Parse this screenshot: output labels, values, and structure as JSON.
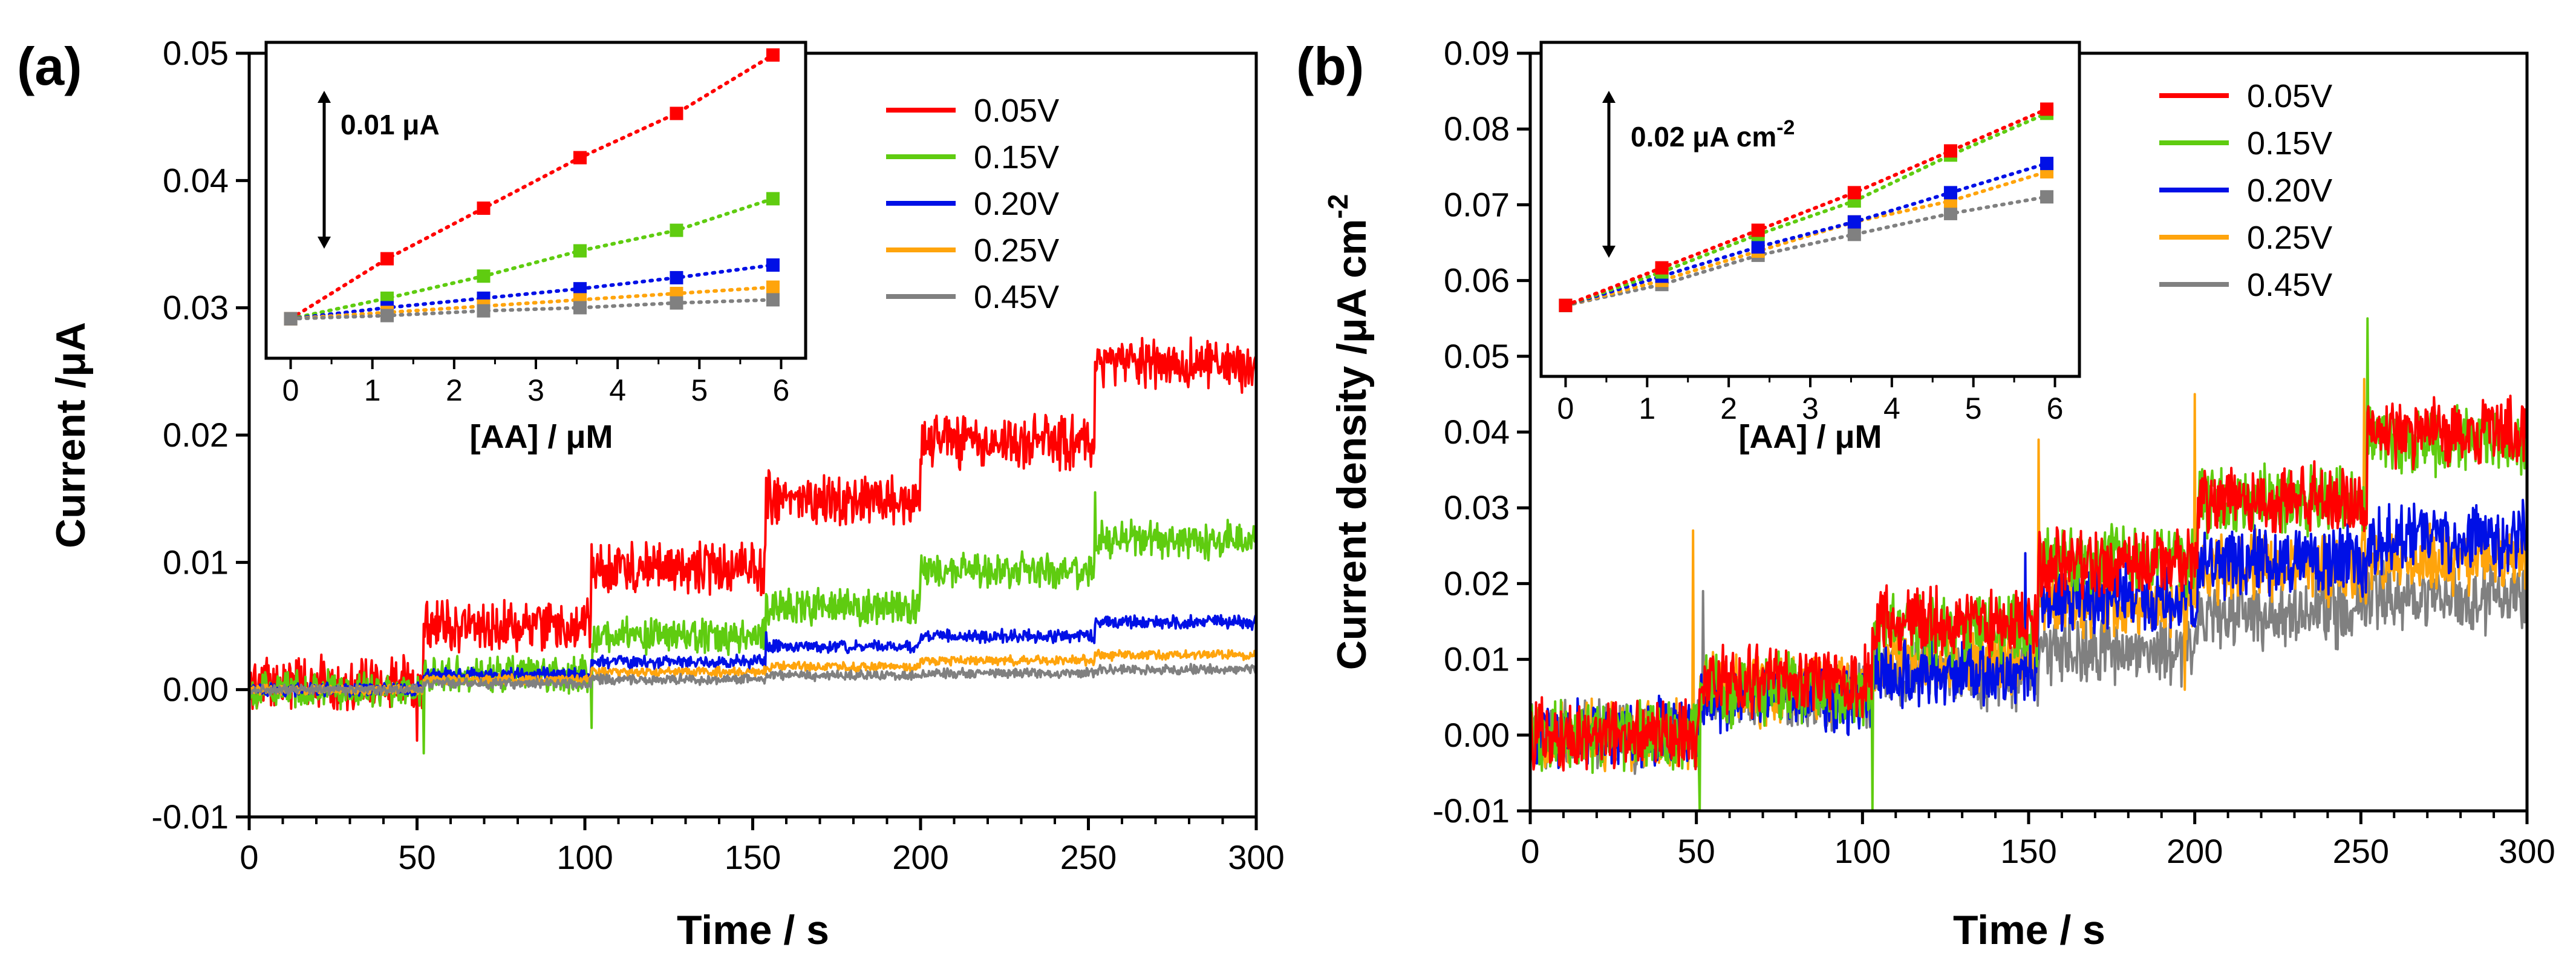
{
  "colors": {
    "s005": "#ff0000",
    "s015": "#5fcc10",
    "s020": "#0010e6",
    "s025": "#ffa40c",
    "s045": "#808080",
    "axis": "#000000"
  },
  "chart_data": [
    {
      "type": "line",
      "panel": "(a)",
      "xlabel": "Time / s",
      "ylabel": "Current /μA",
      "xlim": [
        0,
        300
      ],
      "ylim": [
        -0.01,
        0.05
      ],
      "xticks": [
        0,
        50,
        100,
        150,
        200,
        250,
        300
      ],
      "yticks": [
        -0.01,
        0.0,
        0.01,
        0.02,
        0.03,
        0.04,
        0.05
      ],
      "ytick_labels": [
        "-0.01",
        "0.00",
        "0.01",
        "0.02",
        "0.03",
        "0.04",
        "0.05"
      ],
      "legend": [
        "0.05V",
        "0.15V",
        "0.20V",
        "0.25V",
        "0.45V"
      ],
      "step_times": [
        0,
        52,
        102,
        154,
        200,
        252,
        300
      ],
      "series": [
        {
          "name": "0.05V",
          "color_key": "s005",
          "noise": 0.0016,
          "levels": [
            0.0005,
            0.005,
            0.0095,
            0.015,
            0.0195,
            0.0255
          ],
          "spikes": [
            [
              50,
              -0.004
            ]
          ]
        },
        {
          "name": "0.15V",
          "color_key": "s015",
          "noise": 0.0011,
          "levels": [
            0.0,
            0.0012,
            0.0042,
            0.0065,
            0.0093,
            0.0118
          ],
          "spikes": [
            [
              52,
              -0.005
            ],
            [
              102,
              -0.003
            ],
            [
              252,
              0.0155
            ]
          ]
        },
        {
          "name": "0.20V",
          "color_key": "s020",
          "noise": 0.0004,
          "levels": [
            0.0,
            0.0012,
            0.0022,
            0.0034,
            0.0042,
            0.0053
          ],
          "spikes": [
            [
              154,
              0.0045
            ]
          ]
        },
        {
          "name": "0.25V",
          "color_key": "s025",
          "noise": 0.0003,
          "levels": [
            0.0,
            0.0008,
            0.0014,
            0.0018,
            0.0023,
            0.0027
          ],
          "spikes": []
        },
        {
          "name": "0.45V",
          "color_key": "s045",
          "noise": 0.0003,
          "levels": [
            0.0,
            0.0005,
            0.0008,
            0.0011,
            0.0013,
            0.0016
          ],
          "spikes": []
        }
      ],
      "inset": {
        "xlabel": "[AA] / μM",
        "xlim": [
          -0.3,
          6.3
        ],
        "ylim": [
          0.0,
          0.02
        ],
        "xticks": [
          0,
          1,
          2,
          3,
          4,
          5,
          6
        ],
        "x": [
          0,
          1.18,
          2.36,
          3.54,
          4.72,
          5.9
        ],
        "scale_bar_label": "0.01 μA",
        "scale_bar_value": 0.01,
        "series": [
          {
            "name": "0.05V",
            "color_key": "s005",
            "values": [
              0.0025,
              0.0063,
              0.0095,
              0.0127,
              0.0155,
              0.0192
            ]
          },
          {
            "name": "0.15V",
            "color_key": "s015",
            "values": [
              0.0025,
              0.0038,
              0.0052,
              0.0068,
              0.0081,
              0.0101
            ]
          },
          {
            "name": "0.20V",
            "color_key": "s020",
            "values": [
              0.0025,
              0.0032,
              0.0038,
              0.0044,
              0.0051,
              0.0059
            ]
          },
          {
            "name": "0.25V",
            "color_key": "s025",
            "values": [
              0.0025,
              0.0029,
              0.0033,
              0.0037,
              0.0041,
              0.0045
            ]
          },
          {
            "name": "0.45V",
            "color_key": "s045",
            "values": [
              0.0025,
              0.0027,
              0.003,
              0.0032,
              0.0035,
              0.0037
            ]
          }
        ]
      }
    },
    {
      "type": "line",
      "panel": "(b)",
      "xlabel": "Time / s",
      "ylabel": "Current density /μA cm",
      "ylabel_sup": "-2",
      "xlim": [
        0,
        300
      ],
      "ylim": [
        -0.01,
        0.09
      ],
      "xticks": [
        0,
        50,
        100,
        150,
        200,
        250,
        300
      ],
      "yticks": [
        -0.01,
        0.0,
        0.01,
        0.02,
        0.03,
        0.04,
        0.05,
        0.06,
        0.07,
        0.08,
        0.09
      ],
      "ytick_labels": [
        "-0.01",
        "0.00",
        "0.01",
        "0.02",
        "0.03",
        "0.04",
        "0.05",
        "0.06",
        "0.07",
        "0.08",
        "0.09"
      ],
      "legend": [
        "0.05V",
        "0.15V",
        "0.20V",
        "0.25V",
        "0.45V"
      ],
      "step_times": [
        0,
        51,
        103,
        153,
        201,
        252,
        300
      ],
      "series": [
        {
          "name": "0.45V",
          "color_key": "s045",
          "noise": 0.0035,
          "levels": [
            0.0,
            0.005,
            0.008,
            0.011,
            0.016,
            0.018
          ],
          "spikes": [
            [
              52,
              0.019
            ]
          ]
        },
        {
          "name": "0.25V",
          "color_key": "s025",
          "noise": 0.0035,
          "levels": [
            0.0,
            0.006,
            0.01,
            0.017,
            0.022,
            0.023
          ],
          "spikes": [
            [
              49,
              0.027
            ],
            [
              153,
              0.039
            ],
            [
              200,
              0.045
            ],
            [
              197,
              0.006
            ],
            [
              251,
              0.047
            ]
          ]
        },
        {
          "name": "0.20V",
          "color_key": "s020",
          "noise": 0.0035,
          "levels": [
            0.0,
            0.005,
            0.008,
            0.018,
            0.023,
            0.026
          ],
          "spikes": [
            [
              149,
              0.024
            ]
          ]
        },
        {
          "name": "0.15V",
          "color_key": "s015",
          "noise": 0.0035,
          "levels": [
            0.0,
            0.006,
            0.014,
            0.023,
            0.031,
            0.039
          ],
          "spikes": [
            [
              51,
              -0.01
            ],
            [
              103,
              -0.01
            ],
            [
              252,
              0.055
            ]
          ]
        },
        {
          "name": "0.05V",
          "color_key": "s005",
          "noise": 0.0035,
          "levels": [
            0.0,
            0.007,
            0.015,
            0.023,
            0.031,
            0.04
          ],
          "spikes": []
        }
      ],
      "inset": {
        "xlabel": "[AA] / μM",
        "xlim": [
          -0.3,
          6.3
        ],
        "ylim": [
          0.0,
          0.04
        ],
        "xticks": [
          0,
          1,
          2,
          3,
          4,
          5,
          6
        ],
        "x": [
          0,
          1.18,
          2.36,
          3.54,
          4.72,
          5.9
        ],
        "scale_bar_label": "0.02 μA cm",
        "scale_bar_sup": "-2",
        "scale_bar_value": 0.02,
        "series": [
          {
            "name": "0.45V",
            "color_key": "s045",
            "values": [
              0.0085,
              0.011,
              0.0145,
              0.017,
              0.0195,
              0.0215
            ]
          },
          {
            "name": "0.25V",
            "color_key": "s025",
            "values": [
              0.0085,
              0.0115,
              0.015,
              0.0185,
              0.021,
              0.0245
            ]
          },
          {
            "name": "0.20V",
            "color_key": "s020",
            "values": [
              0.0085,
              0.012,
              0.0155,
              0.0185,
              0.022,
              0.0255
            ]
          },
          {
            "name": "0.15V",
            "color_key": "s015",
            "values": [
              0.0085,
              0.0125,
              0.017,
              0.021,
              0.0265,
              0.0315
            ]
          },
          {
            "name": "0.05V",
            "color_key": "s005",
            "values": [
              0.0085,
              0.013,
              0.0175,
              0.022,
              0.027,
              0.032
            ]
          }
        ]
      }
    }
  ]
}
